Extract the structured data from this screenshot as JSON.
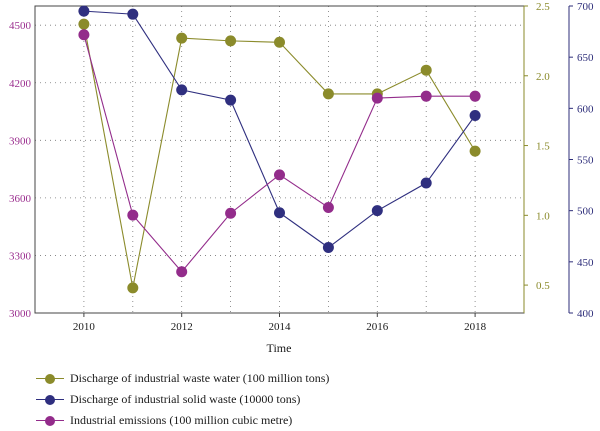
{
  "chart_data": {
    "type": "line",
    "x": [
      2010,
      2011,
      2012,
      2013,
      2014,
      2015,
      2016,
      2017,
      2018
    ],
    "xticks": [
      "2010",
      "2012",
      "2014",
      "2016",
      "2018"
    ],
    "xlabel": "Time",
    "xlim": [
      2009,
      2019
    ],
    "grid": true,
    "legend_position": "bottom",
    "axes": {
      "left": {
        "ylim": [
          3000,
          4600
        ],
        "ticks": [
          "3000",
          "3300",
          "3600",
          "3900",
          "4200",
          "4500"
        ],
        "tick_values": [
          3000,
          3300,
          3600,
          3900,
          4200,
          4500
        ],
        "color": "#9b2f8f"
      },
      "right1": {
        "ylim": [
          0.3,
          2.5
        ],
        "ticks": [
          "0.5",
          "1.0",
          "1.5",
          "2.0",
          "2.5"
        ],
        "tick_values": [
          0.5,
          1.0,
          1.5,
          2.0,
          2.5
        ],
        "color": "#8a8a2a"
      },
      "right2": {
        "ylim": [
          400,
          700
        ],
        "ticks": [
          "400",
          "450",
          "500",
          "550",
          "600",
          "650",
          "700"
        ],
        "tick_values": [
          400,
          450,
          500,
          550,
          600,
          650,
          700
        ],
        "color": "#2e2e7a"
      }
    },
    "series": [
      {
        "name": "Discharge of industrial waste water (100 million tons)",
        "axis": "right1",
        "color": "#8b8b2b",
        "values": [
          2.37,
          0.48,
          2.27,
          2.25,
          2.24,
          1.87,
          1.87,
          2.04,
          1.46
        ]
      },
      {
        "name": "Discharge of industrial solid waste (10000 tons)",
        "axis": "right2",
        "color": "#2f2f7f",
        "values": [
          695,
          692,
          618,
          608,
          498,
          464,
          500,
          527,
          593
        ]
      },
      {
        "name": "Industrial emissions (100 million cubic metre)",
        "axis": "left",
        "color": "#932c8b",
        "values": [
          4450,
          3510,
          3215,
          3520,
          3720,
          3550,
          4120,
          4130,
          4130
        ]
      }
    ]
  }
}
